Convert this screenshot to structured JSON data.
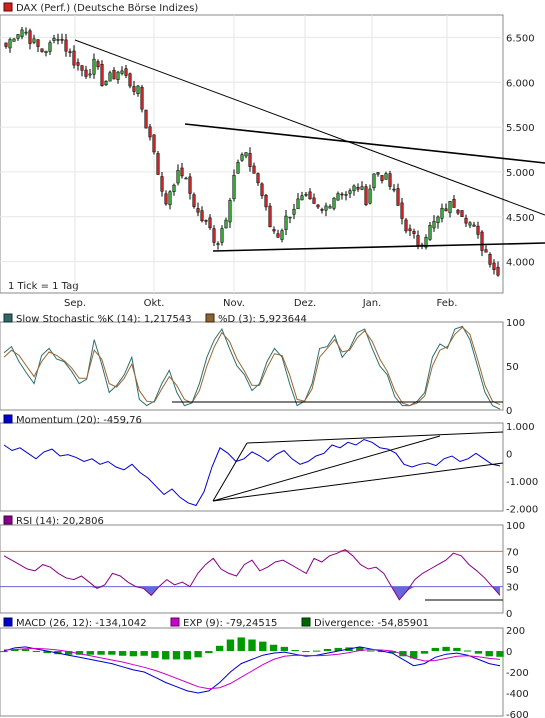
{
  "chart_data": [
    {
      "type": "candlestick",
      "title": "DAX (Perf.) (Deutsche Börse Indizes)",
      "color": "#cc2222",
      "note": "1 Tick = 1 Tag",
      "months": [
        "Sep.",
        "Okt.",
        "Nov.",
        "Dez.",
        "Jan.",
        "Feb."
      ],
      "ylim": [
        3650,
        6750
      ],
      "yticks": [
        4000,
        4500,
        5000,
        5500,
        6000,
        6500
      ],
      "ytick_labels": [
        "4.000",
        "4.500",
        "5.000",
        "5.500",
        "6.000",
        "6.500"
      ],
      "close_anchors": [
        6400,
        6550,
        6600,
        6450,
        6350,
        6400,
        6550,
        6350,
        6200,
        6100,
        6200,
        6000,
        6050,
        6150,
        6000,
        5900,
        5500,
        5200,
        4600,
        4900,
        5000,
        4750,
        4500,
        4400,
        4200,
        4500,
        5000,
        5200,
        5050,
        4800,
        4400,
        4300,
        4500,
        4650,
        4700,
        4600,
        4550,
        4700,
        4800,
        4750,
        4850,
        4700,
        5000,
        4950,
        4800,
        4500,
        4300,
        4200,
        4350,
        4450,
        4600,
        4650,
        4550,
        4400,
        4200,
        4050,
        3850
      ]
    },
    {
      "type": "line",
      "title_left": "Slow Stochastic %K (14): 1,217543",
      "title_right": "%D (3): 5,923644",
      "left_color": "#336666",
      "right_color": "#886633",
      "ylim": [
        0,
        100
      ],
      "yticks": [
        0,
        50,
        100
      ],
      "ytick_labels": [
        "0",
        "50",
        "100"
      ],
      "series": [
        {
          "name": "Slow Stochastic %K (14)",
          "color": "#2f6f6f",
          "values": [
            65,
            72,
            55,
            42,
            30,
            62,
            70,
            58,
            55,
            44,
            30,
            35,
            80,
            52,
            20,
            28,
            40,
            60,
            12,
            5,
            10,
            30,
            45,
            20,
            5,
            8,
            30,
            60,
            80,
            92,
            70,
            50,
            40,
            22,
            30,
            55,
            70,
            60,
            30,
            5,
            10,
            30,
            70,
            72,
            85,
            60,
            70,
            88,
            92,
            70,
            50,
            40,
            15,
            5,
            5,
            10,
            20,
            60,
            75,
            70,
            92,
            95,
            80,
            50,
            20,
            5,
            1
          ]
        },
        {
          "name": "%D (3)",
          "color": "#996633",
          "values": [
            60,
            68,
            62,
            50,
            38,
            55,
            66,
            62,
            56,
            48,
            36,
            36,
            68,
            58,
            30,
            26,
            36,
            52,
            22,
            10,
            9,
            24,
            38,
            28,
            12,
            8,
            22,
            50,
            72,
            88,
            78,
            58,
            44,
            28,
            28,
            48,
            64,
            62,
            40,
            12,
            10,
            24,
            60,
            70,
            80,
            66,
            68,
            82,
            90,
            78,
            58,
            44,
            22,
            8,
            5,
            8,
            16,
            50,
            68,
            72,
            86,
            94,
            86,
            58,
            28,
            10,
            6
          ]
        }
      ]
    },
    {
      "type": "line",
      "title": "Momentum (20): -459,76",
      "color": "#0000cc",
      "ylim": [
        -2100,
        1100
      ],
      "yticks": [
        -2000,
        -1000,
        0,
        1000
      ],
      "ytick_labels": [
        "-2.000",
        "-1.000",
        "0",
        "1.000"
      ],
      "series": [
        {
          "name": "Momentum (20)",
          "color": "#0000cc",
          "values": [
            300,
            100,
            200,
            0,
            -200,
            50,
            150,
            -100,
            -50,
            -150,
            -300,
            -200,
            -400,
            -300,
            -500,
            -600,
            -400,
            -700,
            -900,
            -1200,
            -1500,
            -1300,
            -1600,
            -1800,
            -1900,
            -1400,
            -500,
            200,
            0,
            -300,
            -200,
            50,
            -100,
            -300,
            -50,
            100,
            -200,
            -400,
            -300,
            -100,
            0,
            300,
            200,
            400,
            300,
            500,
            400,
            200,
            150,
            0,
            -400,
            -500,
            -400,
            -350,
            -450,
            -200,
            -100,
            -300,
            -200,
            0,
            -200,
            -400,
            -460
          ]
        }
      ]
    },
    {
      "type": "line",
      "title": "RSI (14): 20,2806",
      "color": "#880088",
      "ylim": [
        0,
        100
      ],
      "yticks": [
        0,
        30,
        50,
        70,
        100
      ],
      "ytick_labels": [
        "0",
        "30",
        "50",
        "70",
        "100"
      ],
      "series": [
        {
          "name": "RSI (14)",
          "color": "#880088",
          "values": [
            65,
            60,
            55,
            50,
            48,
            55,
            52,
            45,
            40,
            38,
            42,
            35,
            28,
            32,
            45,
            42,
            35,
            30,
            28,
            20,
            30,
            38,
            32,
            35,
            30,
            45,
            55,
            62,
            50,
            45,
            42,
            55,
            60,
            48,
            52,
            58,
            60,
            55,
            50,
            45,
            62,
            58,
            65,
            68,
            72,
            65,
            55,
            50,
            52,
            45,
            30,
            15,
            25,
            38,
            45,
            50,
            55,
            60,
            68,
            65,
            55,
            48,
            40,
            30,
            20
          ]
        }
      ]
    },
    {
      "type": "line",
      "title_left": "MACD (26, 12): -134,1042",
      "title_mid": "EXP (9): -79,24515",
      "title_right": "Divergence: -54,85901",
      "left_color": "#0000cc",
      "mid_color": "#cc00cc",
      "right_color": "#006600",
      "ylim": [
        -620,
        220
      ],
      "yticks": [
        -600,
        -400,
        -200,
        0,
        200
      ],
      "ytick_labels": [
        "-600",
        "-400",
        "-200",
        "0",
        "200"
      ],
      "series": [
        {
          "name": "MACD (26, 12)",
          "color": "#0000cc",
          "values": [
            0,
            30,
            40,
            20,
            0,
            -20,
            -40,
            -60,
            -80,
            -100,
            -120,
            -150,
            -180,
            -200,
            -250,
            -300,
            -340,
            -380,
            -400,
            -380,
            -300,
            -200,
            -120,
            -80,
            -40,
            -20,
            -10,
            -30,
            -50,
            -40,
            -20,
            0,
            20,
            40,
            20,
            0,
            -20,
            -80,
            -140,
            -120,
            -60,
            -30,
            -20,
            -40,
            -80,
            -120,
            -140
          ]
        },
        {
          "name": "EXP (9)",
          "color": "#cc00cc",
          "values": [
            10,
            15,
            22,
            25,
            20,
            10,
            -5,
            -25,
            -45,
            -65,
            -85,
            -105,
            -130,
            -155,
            -185,
            -220,
            -260,
            -300,
            -340,
            -360,
            -350,
            -310,
            -250,
            -190,
            -130,
            -80,
            -50,
            -40,
            -42,
            -44,
            -40,
            -30,
            -15,
            5,
            15,
            10,
            0,
            -30,
            -70,
            -95,
            -90,
            -70,
            -50,
            -45,
            -55,
            -70,
            -80
          ]
        },
        {
          "name": "Divergence",
          "color": "#009900",
          "values": [
            -10,
            15,
            18,
            -5,
            -20,
            -30,
            -35,
            -35,
            -35,
            -35,
            -35,
            -45,
            -50,
            -45,
            -65,
            -80,
            -80,
            -80,
            -60,
            -20,
            50,
            110,
            130,
            110,
            90,
            60,
            40,
            10,
            -8,
            4,
            20,
            30,
            35,
            35,
            5,
            -10,
            -20,
            -50,
            -70,
            -25,
            30,
            40,
            30,
            5,
            -25,
            -50,
            -55
          ]
        }
      ]
    }
  ]
}
